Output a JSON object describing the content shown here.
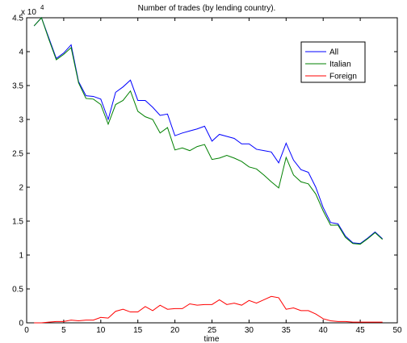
{
  "chart_data": {
    "type": "line",
    "title": "Number of trades (by lending country).",
    "xlabel": "time",
    "ylabel": "",
    "y_multiplier_label": "x 10",
    "y_multiplier_exponent": "4",
    "xlim": [
      0,
      50
    ],
    "ylim": [
      0,
      45000
    ],
    "x_ticks": [
      0,
      5,
      10,
      15,
      20,
      25,
      30,
      35,
      40,
      45,
      50
    ],
    "y_ticks": [
      0,
      5000,
      10000,
      15000,
      20000,
      25000,
      30000,
      35000,
      40000,
      45000
    ],
    "y_tick_labels": [
      "0",
      "0.5",
      "1",
      "1.5",
      "2",
      "2.5",
      "3",
      "3.5",
      "4",
      "4.5"
    ],
    "grid": false,
    "legend_position": "top-right",
    "x": [
      1,
      2,
      3,
      4,
      5,
      6,
      7,
      8,
      9,
      10,
      11,
      12,
      13,
      14,
      15,
      16,
      17,
      18,
      19,
      20,
      21,
      22,
      23,
      24,
      25,
      26,
      27,
      28,
      29,
      30,
      31,
      32,
      33,
      34,
      35,
      36,
      37,
      38,
      39,
      40,
      41,
      42,
      43,
      44,
      45,
      46,
      47,
      48
    ],
    "series": [
      {
        "name": "All",
        "color": "#0000ff",
        "values": [
          43800,
          45000,
          42000,
          39000,
          39800,
          41000,
          35600,
          33500,
          33400,
          33000,
          30000,
          34000,
          34800,
          35800,
          32800,
          32800,
          31800,
          30600,
          30800,
          27600,
          28000,
          28300,
          28600,
          29000,
          26800,
          27800,
          27500,
          27200,
          26400,
          26400,
          25600,
          25400,
          25200,
          23600,
          26500,
          24000,
          22600,
          22200,
          20000,
          17000,
          14800,
          14600,
          12800,
          11800,
          11700,
          12500,
          13400,
          12400
        ]
      },
      {
        "name": "Italian",
        "color": "#008000",
        "values": [
          43800,
          45000,
          41800,
          38800,
          39600,
          40600,
          35400,
          33100,
          33000,
          32200,
          29300,
          32200,
          32800,
          34200,
          31200,
          30400,
          30000,
          28000,
          28800,
          25500,
          25800,
          25400,
          26000,
          26300,
          24100,
          24300,
          24700,
          24300,
          23800,
          23000,
          22700,
          21800,
          20800,
          19900,
          24400,
          21800,
          20800,
          20500,
          19000,
          16500,
          14400,
          14400,
          12600,
          11700,
          11600,
          12400,
          13300,
          12300
        ]
      },
      {
        "name": "Foreign",
        "color": "#ff0000",
        "values": [
          0,
          0,
          100,
          200,
          200,
          400,
          300,
          400,
          400,
          800,
          700,
          1700,
          2000,
          1600,
          1600,
          2400,
          1800,
          2600,
          2000,
          2100,
          2100,
          2800,
          2600,
          2700,
          2700,
          3400,
          2700,
          2900,
          2600,
          3300,
          2900,
          3400,
          3900,
          3700,
          2000,
          2200,
          1800,
          1800,
          1300,
          600,
          300,
          200,
          200,
          100,
          100,
          100,
          100,
          100
        ]
      }
    ]
  }
}
